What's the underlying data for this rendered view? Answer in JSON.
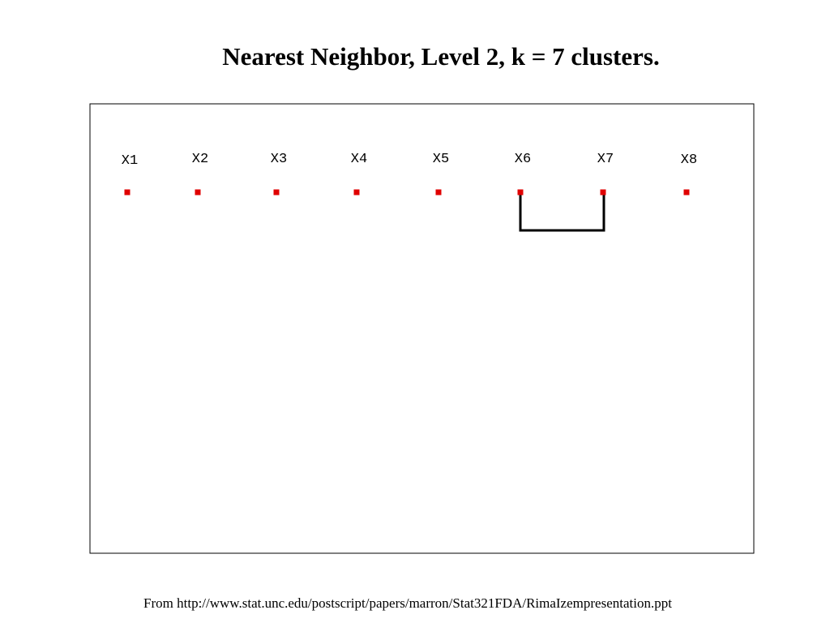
{
  "title": "Nearest Neighbor, Level 2, k = 7 clusters.",
  "nodes": [
    {
      "label": "X1"
    },
    {
      "label": "X2"
    },
    {
      "label": "X3"
    },
    {
      "label": "X4"
    },
    {
      "label": "X5"
    },
    {
      "label": "X6"
    },
    {
      "label": "X7"
    },
    {
      "label": "X8"
    }
  ],
  "footer": "From http://www.stat.unc.edu/postscript/papers/marron/Stat321FDA/RimaIzempresentation.ppt"
}
